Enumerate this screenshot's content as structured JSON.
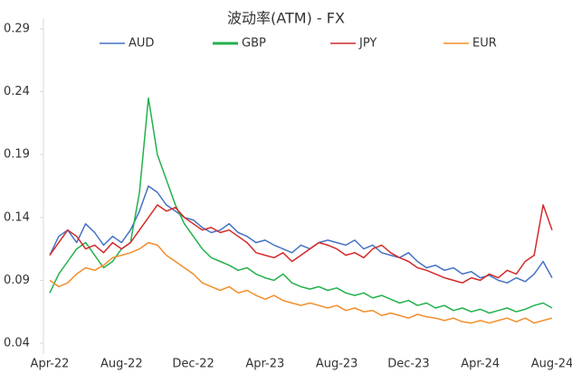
{
  "chart_data": {
    "type": "line",
    "title": "波动率(ATM) - FX",
    "categories": [
      "Apr-22",
      null,
      null,
      null,
      null,
      null,
      null,
      null,
      "Aug-22",
      null,
      null,
      null,
      null,
      null,
      null,
      null,
      "Dec-22",
      null,
      null,
      null,
      null,
      null,
      null,
      null,
      "Apr-23",
      null,
      null,
      null,
      null,
      null,
      null,
      null,
      "Aug-23",
      null,
      null,
      null,
      null,
      null,
      null,
      null,
      "Dec-23",
      null,
      null,
      null,
      null,
      null,
      null,
      null,
      "Apr-24",
      null,
      null,
      null,
      null,
      null,
      null,
      null,
      "Aug-24"
    ],
    "series": [
      {
        "name": "AUD",
        "color": "#4472c4",
        "values": [
          0.11,
          0.125,
          0.13,
          0.12,
          0.135,
          0.128,
          0.118,
          0.125,
          0.12,
          0.13,
          0.145,
          0.165,
          0.16,
          0.15,
          0.145,
          0.14,
          0.138,
          0.132,
          0.128,
          0.13,
          0.135,
          0.128,
          0.125,
          0.12,
          0.122,
          0.118,
          0.115,
          0.112,
          0.118,
          0.115,
          0.12,
          0.122,
          0.12,
          0.118,
          0.122,
          0.115,
          0.118,
          0.112,
          0.11,
          0.108,
          0.112,
          0.105,
          0.1,
          0.102,
          0.098,
          0.1,
          0.095,
          0.097,
          0.092,
          0.094,
          0.09,
          0.088,
          0.092,
          0.089,
          0.095,
          0.105,
          0.092
        ]
      },
      {
        "name": "GBP",
        "color": "#22b14c",
        "values": [
          0.08,
          0.095,
          0.105,
          0.115,
          0.12,
          0.11,
          0.1,
          0.105,
          0.115,
          0.12,
          0.16,
          0.235,
          0.19,
          0.17,
          0.15,
          0.135,
          0.125,
          0.115,
          0.108,
          0.105,
          0.102,
          0.098,
          0.1,
          0.095,
          0.092,
          0.09,
          0.095,
          0.088,
          0.085,
          0.083,
          0.085,
          0.082,
          0.084,
          0.08,
          0.078,
          0.08,
          0.076,
          0.078,
          0.075,
          0.072,
          0.074,
          0.07,
          0.072,
          0.068,
          0.07,
          0.066,
          0.068,
          0.065,
          0.067,
          0.064,
          0.066,
          0.068,
          0.065,
          0.067,
          0.07,
          0.072,
          0.068
        ]
      },
      {
        "name": "JPY",
        "color": "#d42a2a",
        "values": [
          0.11,
          0.12,
          0.13,
          0.125,
          0.115,
          0.118,
          0.112,
          0.12,
          0.115,
          0.12,
          0.13,
          0.14,
          0.15,
          0.145,
          0.148,
          0.14,
          0.135,
          0.13,
          0.132,
          0.128,
          0.13,
          0.125,
          0.12,
          0.112,
          0.11,
          0.108,
          0.112,
          0.105,
          0.11,
          0.115,
          0.12,
          0.118,
          0.115,
          0.11,
          0.112,
          0.108,
          0.115,
          0.118,
          0.112,
          0.108,
          0.105,
          0.1,
          0.098,
          0.095,
          0.092,
          0.09,
          0.088,
          0.092,
          0.09,
          0.095,
          0.092,
          0.098,
          0.095,
          0.105,
          0.11,
          0.15,
          0.13
        ]
      },
      {
        "name": "EUR",
        "color": "#f28e2b",
        "values": [
          0.09,
          0.085,
          0.088,
          0.095,
          0.1,
          0.098,
          0.102,
          0.108,
          0.11,
          0.112,
          0.115,
          0.12,
          0.118,
          0.11,
          0.105,
          0.1,
          0.095,
          0.088,
          0.085,
          0.082,
          0.085,
          0.08,
          0.082,
          0.078,
          0.075,
          0.078,
          0.074,
          0.072,
          0.07,
          0.072,
          0.07,
          0.068,
          0.07,
          0.066,
          0.068,
          0.065,
          0.066,
          0.062,
          0.064,
          0.062,
          0.06,
          0.063,
          0.061,
          0.06,
          0.058,
          0.06,
          0.057,
          0.056,
          0.058,
          0.056,
          0.058,
          0.06,
          0.057,
          0.06,
          0.056,
          0.058,
          0.06
        ]
      }
    ],
    "ylim": [
      0.04,
      0.29
    ],
    "yticks": [
      0.04,
      0.09,
      0.14,
      0.19,
      0.24,
      0.29
    ],
    "grid": false
  }
}
